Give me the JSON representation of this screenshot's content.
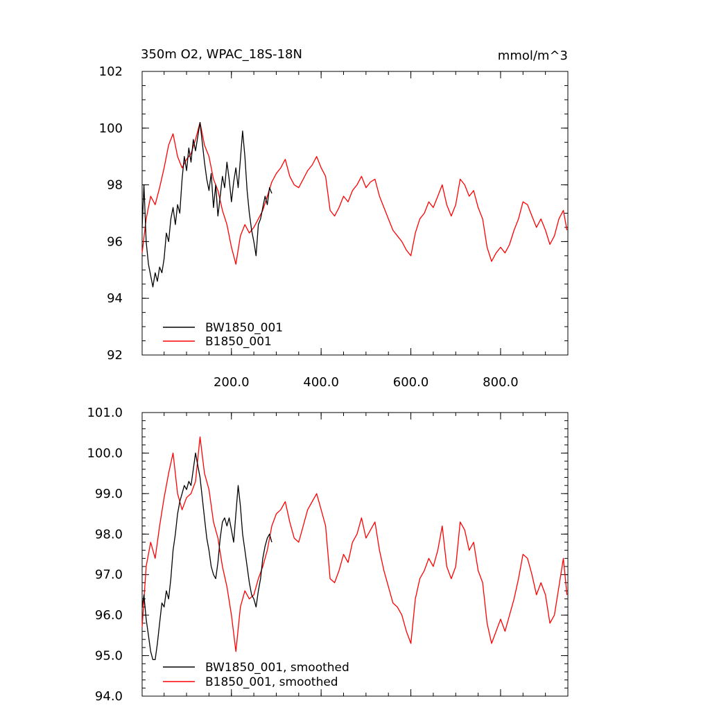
{
  "chart_data": [
    {
      "type": "line",
      "title": "350m O2, WPAC_18S-18N",
      "units": "mmol/m^3",
      "xlabel": "",
      "ylabel": "",
      "xlim": [
        1,
        950
      ],
      "ylim": [
        92,
        102
      ],
      "x_ticks": [
        200,
        400,
        600,
        800
      ],
      "x_tick_labels": [
        "200.0",
        "400.0",
        "600.0",
        "800.0"
      ],
      "y_ticks": [
        92,
        94,
        96,
        98,
        100,
        102
      ],
      "y_tick_labels": [
        "92",
        "94",
        "96",
        "98",
        "100",
        "102"
      ],
      "legend_position": "bottom-left",
      "series": [
        {
          "name": "BW1850_001",
          "color": "#000000",
          "x": [
            1,
            5,
            10,
            15,
            20,
            25,
            30,
            35,
            40,
            45,
            50,
            55,
            60,
            65,
            70,
            75,
            80,
            85,
            90,
            95,
            100,
            105,
            110,
            115,
            120,
            125,
            130,
            135,
            140,
            145,
            150,
            155,
            160,
            165,
            170,
            175,
            180,
            185,
            190,
            195,
            200,
            205,
            210,
            215,
            220,
            225,
            230,
            235,
            240,
            245,
            250,
            255,
            260,
            265,
            270,
            275,
            280,
            285,
            290
          ],
          "values": [
            96.5,
            98.0,
            96.0,
            95.2,
            94.8,
            94.4,
            94.9,
            94.6,
            95.1,
            94.9,
            95.4,
            96.3,
            96.0,
            96.8,
            97.2,
            96.6,
            97.3,
            97.0,
            98.2,
            99.0,
            98.5,
            99.3,
            98.8,
            99.6,
            99.2,
            99.7,
            100.2,
            99.5,
            98.8,
            98.2,
            97.8,
            98.4,
            97.2,
            98.0,
            96.9,
            97.6,
            98.3,
            97.9,
            98.8,
            98.2,
            97.4,
            98.1,
            98.6,
            97.9,
            98.9,
            99.9,
            99.0,
            97.8,
            97.0,
            96.4,
            96.0,
            95.5,
            96.6,
            96.8,
            97.2,
            97.6,
            97.3,
            97.9,
            97.7
          ]
        },
        {
          "name": "B1850_001",
          "color": "#ff0000",
          "x": [
            1,
            10,
            20,
            30,
            40,
            50,
            60,
            70,
            80,
            90,
            100,
            110,
            120,
            130,
            140,
            150,
            160,
            170,
            180,
            190,
            200,
            210,
            220,
            230,
            240,
            250,
            260,
            270,
            280,
            290,
            300,
            310,
            320,
            330,
            340,
            350,
            360,
            370,
            380,
            390,
            400,
            410,
            420,
            430,
            440,
            450,
            460,
            470,
            480,
            490,
            500,
            510,
            520,
            530,
            540,
            550,
            560,
            570,
            580,
            590,
            600,
            610,
            620,
            630,
            640,
            650,
            660,
            670,
            680,
            690,
            700,
            710,
            720,
            730,
            740,
            750,
            760,
            770,
            780,
            790,
            800,
            810,
            820,
            830,
            840,
            850,
            860,
            870,
            880,
            890,
            900,
            910,
            920,
            930,
            940,
            948
          ],
          "values": [
            95.6,
            96.8,
            97.6,
            97.3,
            97.9,
            98.6,
            99.4,
            99.8,
            99.0,
            98.6,
            98.9,
            99.1,
            99.6,
            100.2,
            99.4,
            99.0,
            98.2,
            97.8,
            97.1,
            96.6,
            95.8,
            95.2,
            96.2,
            96.6,
            96.3,
            96.5,
            96.8,
            97.1,
            97.6,
            98.1,
            98.4,
            98.6,
            98.9,
            98.3,
            98.0,
            97.9,
            98.2,
            98.5,
            98.7,
            99.0,
            98.6,
            98.3,
            97.1,
            96.9,
            97.2,
            97.6,
            97.4,
            97.8,
            98.0,
            98.3,
            97.9,
            98.1,
            98.2,
            97.6,
            97.2,
            96.8,
            96.4,
            96.2,
            96.0,
            95.7,
            95.5,
            96.3,
            96.8,
            97.0,
            97.4,
            97.2,
            97.6,
            98.0,
            97.3,
            96.9,
            97.3,
            98.2,
            98.0,
            97.6,
            97.8,
            97.2,
            96.8,
            95.8,
            95.3,
            95.6,
            95.8,
            95.6,
            95.9,
            96.4,
            96.8,
            97.4,
            97.3,
            96.9,
            96.5,
            96.8,
            96.4,
            95.9,
            96.2,
            96.8,
            97.1,
            96.4
          ]
        }
      ]
    },
    {
      "type": "line",
      "title": "",
      "xlabel": "",
      "ylabel": "",
      "xlim": [
        1,
        950
      ],
      "ylim": [
        94,
        101
      ],
      "x_ticks": [
        200,
        400,
        600,
        800
      ],
      "x_tick_labels": [],
      "y_ticks": [
        94,
        95,
        96,
        97,
        98,
        99,
        100,
        101
      ],
      "y_tick_labels": [
        "94.0",
        "95.0",
        "96.0",
        "97.0",
        "98.0",
        "99.0",
        "100.0",
        "101.0"
      ],
      "legend_position": "bottom-left",
      "series": [
        {
          "name": "BW1850_001, smoothed",
          "color": "#000000",
          "x": [
            1,
            5,
            10,
            15,
            20,
            25,
            30,
            35,
            40,
            45,
            50,
            55,
            60,
            65,
            70,
            75,
            80,
            85,
            90,
            95,
            100,
            105,
            110,
            115,
            120,
            125,
            130,
            135,
            140,
            145,
            150,
            155,
            160,
            165,
            170,
            175,
            180,
            185,
            190,
            195,
            200,
            205,
            210,
            215,
            220,
            225,
            230,
            235,
            240,
            245,
            250,
            255,
            260,
            265,
            270,
            275,
            280,
            285,
            290
          ],
          "values": [
            96.2,
            96.5,
            95.9,
            95.5,
            95.1,
            94.9,
            94.9,
            95.3,
            95.8,
            96.3,
            96.2,
            96.6,
            96.4,
            96.9,
            97.6,
            98.0,
            98.5,
            98.8,
            99.0,
            99.2,
            99.1,
            99.3,
            99.2,
            99.6,
            100.0,
            99.7,
            99.4,
            98.9,
            98.4,
            97.9,
            97.6,
            97.2,
            97.0,
            96.9,
            97.3,
            97.9,
            98.3,
            98.4,
            98.2,
            98.4,
            98.1,
            97.8,
            98.5,
            99.2,
            98.7,
            98.0,
            97.6,
            97.2,
            96.8,
            96.5,
            96.4,
            96.2,
            96.6,
            96.9,
            97.4,
            97.7,
            97.9,
            98.0,
            97.8
          ]
        },
        {
          "name": "B1850_001, smoothed",
          "color": "#ff0000",
          "x": [
            1,
            10,
            20,
            30,
            40,
            50,
            60,
            70,
            80,
            90,
            100,
            110,
            120,
            130,
            140,
            150,
            160,
            170,
            180,
            190,
            200,
            210,
            220,
            230,
            240,
            250,
            260,
            270,
            280,
            290,
            300,
            310,
            320,
            330,
            340,
            350,
            360,
            370,
            380,
            390,
            400,
            410,
            420,
            430,
            440,
            450,
            460,
            470,
            480,
            490,
            500,
            510,
            520,
            530,
            540,
            550,
            560,
            570,
            580,
            590,
            600,
            610,
            620,
            630,
            640,
            650,
            660,
            670,
            680,
            690,
            700,
            710,
            720,
            730,
            740,
            750,
            760,
            770,
            780,
            790,
            800,
            810,
            820,
            830,
            840,
            850,
            860,
            870,
            880,
            890,
            900,
            910,
            920,
            930,
            940,
            948
          ],
          "values": [
            95.7,
            97.2,
            97.8,
            97.4,
            98.2,
            98.9,
            99.5,
            100.0,
            99.0,
            98.6,
            98.9,
            99.0,
            99.3,
            100.4,
            99.5,
            99.1,
            98.3,
            97.9,
            97.2,
            96.7,
            96.0,
            95.1,
            96.2,
            96.6,
            96.4,
            96.5,
            96.9,
            97.2,
            97.6,
            98.2,
            98.5,
            98.6,
            98.8,
            98.3,
            97.9,
            97.8,
            98.2,
            98.6,
            98.8,
            99.0,
            98.6,
            98.2,
            96.9,
            96.8,
            97.1,
            97.5,
            97.3,
            97.8,
            98.0,
            98.4,
            97.9,
            98.1,
            98.3,
            97.6,
            97.1,
            96.7,
            96.3,
            96.2,
            96.0,
            95.6,
            95.3,
            96.4,
            96.9,
            97.1,
            97.4,
            97.2,
            97.6,
            98.2,
            97.2,
            96.9,
            97.2,
            98.3,
            98.1,
            97.6,
            97.8,
            97.1,
            96.8,
            95.8,
            95.3,
            95.6,
            95.9,
            95.6,
            96.0,
            96.4,
            96.9,
            97.5,
            97.4,
            97.0,
            96.5,
            96.8,
            96.5,
            95.8,
            96.0,
            96.7,
            97.4,
            96.5
          ]
        }
      ]
    }
  ]
}
